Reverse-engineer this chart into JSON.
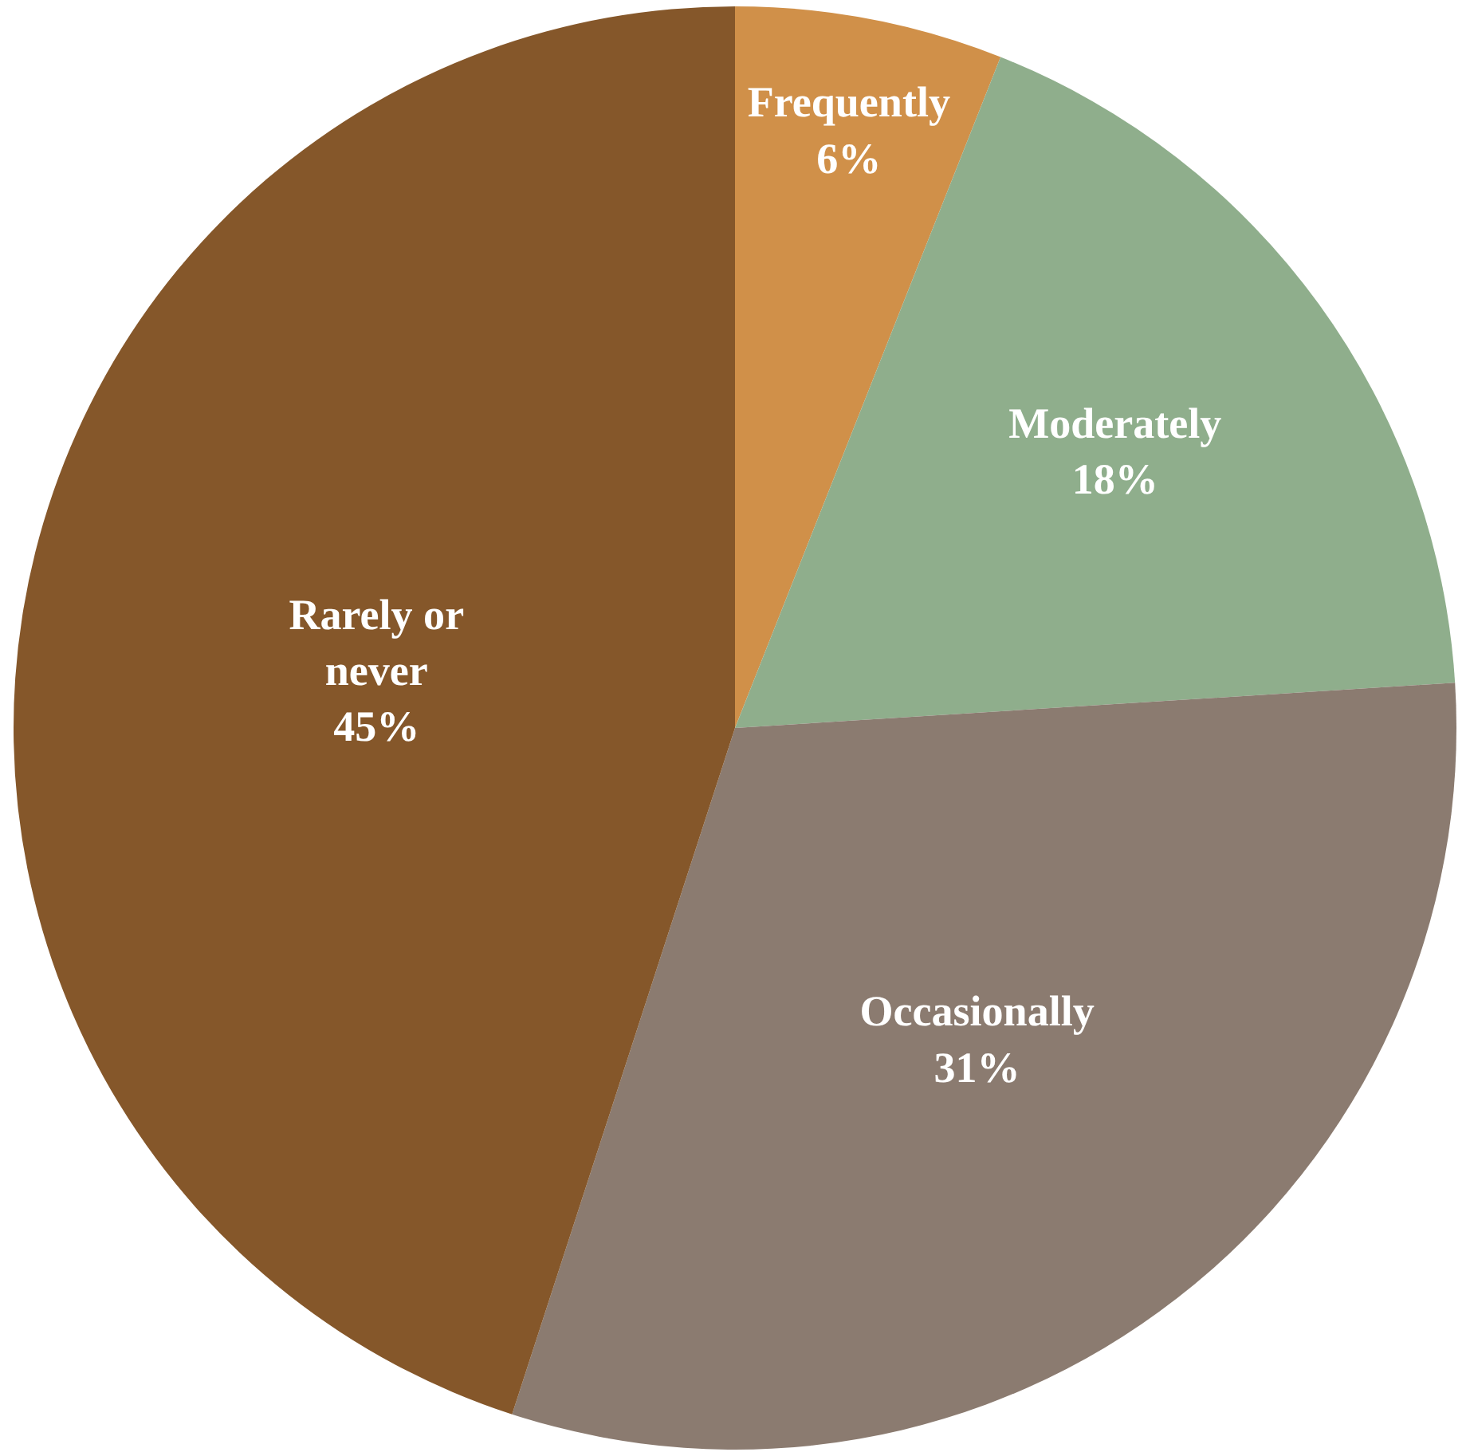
{
  "chart_data": {
    "type": "pie",
    "categories": [
      "Frequently",
      "Moderately",
      "Occasionally",
      "Rarely or never"
    ],
    "values": [
      6,
      18,
      31,
      45
    ],
    "colors": [
      "#d09049",
      "#8fae8c",
      "#8b7b70",
      "#85572a"
    ],
    "value_labels": [
      "6%",
      "18%",
      "31%",
      "45%"
    ],
    "legend": false
  }
}
